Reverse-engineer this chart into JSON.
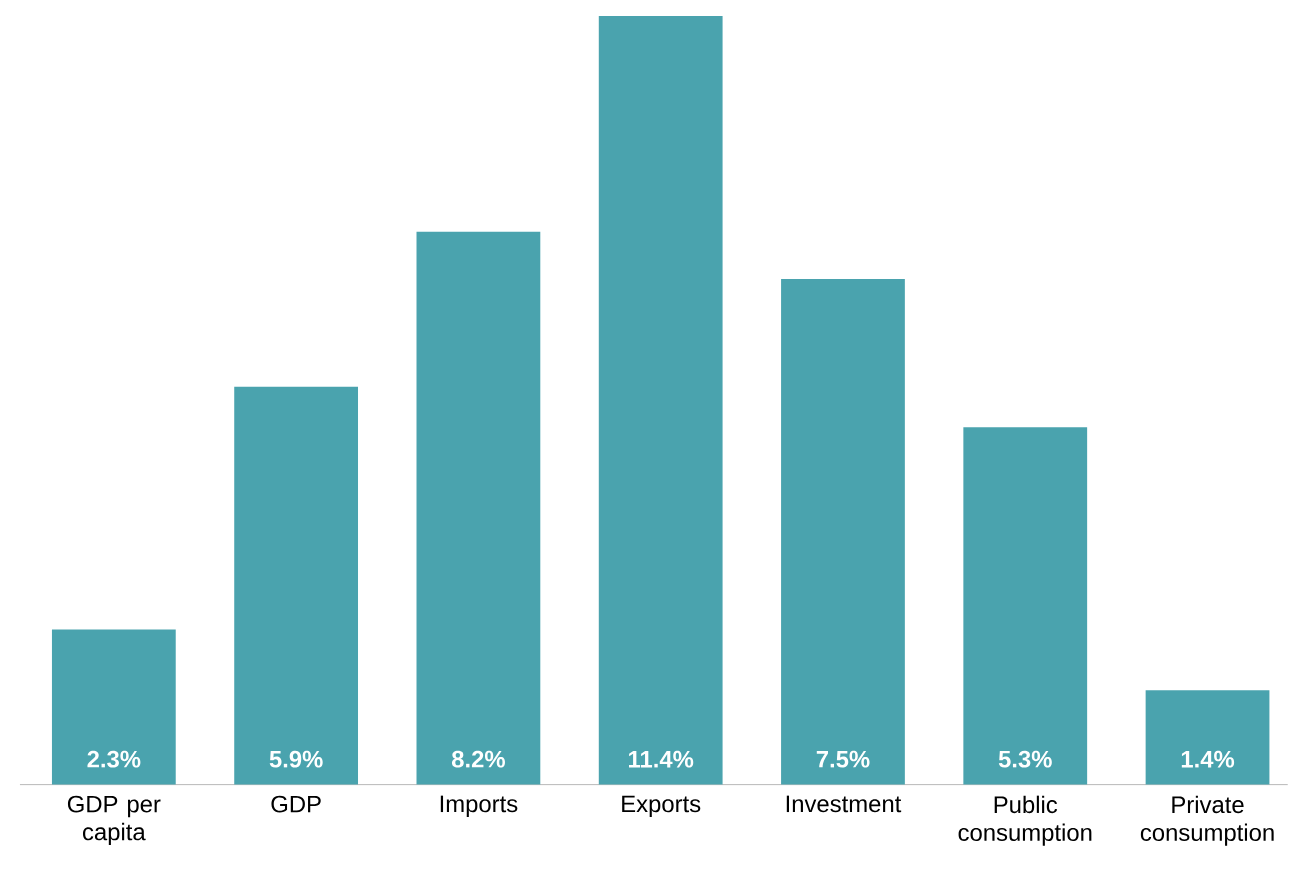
{
  "chart_data": {
    "type": "bar",
    "categories": [
      "GDP per capita",
      "GDP",
      "Imports",
      "Exports",
      "Investment",
      "Public consumption",
      "Private consumption"
    ],
    "values": [
      2.3,
      5.9,
      8.2,
      11.4,
      7.5,
      5.3,
      1.4
    ],
    "value_labels": [
      "2.3%",
      "5.9%",
      "8.2%",
      "11.4%",
      "7.5%",
      "5.3%",
      "1.4%"
    ],
    "color": "#4aa3ae"
  }
}
